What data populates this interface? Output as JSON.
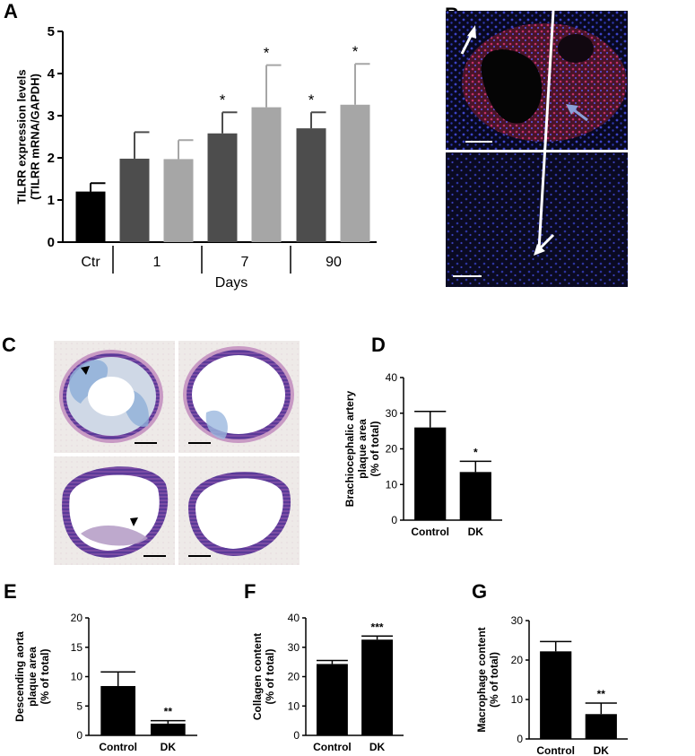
{
  "panels": {
    "A": {
      "letter": "A"
    },
    "B": {
      "letter": "B"
    },
    "C": {
      "letter": "C"
    },
    "D": {
      "letter": "D"
    },
    "E": {
      "letter": "E"
    },
    "F": {
      "letter": "F"
    },
    "G": {
      "letter": "G"
    }
  },
  "colors": {
    "black": "#000000",
    "dark_gray": "#4d4d4d",
    "light_gray": "#a6a6a6",
    "stain_blue": "#4f6fc0",
    "stain_red": "#d0306a",
    "tissue_pink": "#d49ac8"
  },
  "chart_data": [
    {
      "id": "A",
      "type": "bar",
      "ylabel": "TILRR expression levels\n(TILRR mRNA/GAPDH)",
      "xlabel": "Days",
      "group_labels": [
        "Ctr",
        "1",
        "7",
        "90"
      ],
      "ylim": [
        0,
        5
      ],
      "yticks": [
        0,
        1,
        2,
        3,
        4,
        5
      ],
      "bars": [
        {
          "group": "Ctr",
          "value": 1.2,
          "error": 0.2,
          "color": "black",
          "sig": ""
        },
        {
          "group": "1",
          "value": 1.98,
          "error": 0.63,
          "color": "dark_gray",
          "sig": ""
        },
        {
          "group": "1",
          "value": 1.97,
          "error": 0.45,
          "color": "light_gray",
          "sig": ""
        },
        {
          "group": "7",
          "value": 2.58,
          "error": 0.5,
          "color": "dark_gray",
          "sig": "*"
        },
        {
          "group": "7",
          "value": 3.2,
          "error": 1.0,
          "color": "light_gray",
          "sig": "*"
        },
        {
          "group": "90",
          "value": 2.7,
          "error": 0.38,
          "color": "dark_gray",
          "sig": "*"
        },
        {
          "group": "90",
          "value": 3.26,
          "error": 0.97,
          "color": "light_gray",
          "sig": "*"
        }
      ]
    },
    {
      "id": "D",
      "type": "bar",
      "ylabel": "Brachiocephalic artery\nplaque area\n(% of total)",
      "categories": [
        "Control",
        "DK"
      ],
      "values": [
        26,
        13.5
      ],
      "errors": [
        4.5,
        3
      ],
      "sig": [
        "",
        "*"
      ],
      "ylim": [
        0,
        40
      ],
      "yticks": [
        0,
        10,
        20,
        30,
        40
      ]
    },
    {
      "id": "E",
      "type": "bar",
      "ylabel": "Descending aorta\nplaque area\n(% of total)",
      "categories": [
        "Control",
        "DK"
      ],
      "values": [
        8.4,
        2
      ],
      "errors": [
        2.4,
        0.5
      ],
      "sig": [
        "",
        "**"
      ],
      "ylim": [
        0,
        20
      ],
      "yticks": [
        0,
        5,
        10,
        15,
        20
      ]
    },
    {
      "id": "F",
      "type": "bar",
      "ylabel": "Collagen content\n(% of total)",
      "categories": [
        "Control",
        "DK"
      ],
      "values": [
        24.3,
        32.6
      ],
      "errors": [
        1.2,
        1.2
      ],
      "sig": [
        "",
        "***"
      ],
      "ylim": [
        0,
        40
      ],
      "yticks": [
        0,
        10,
        20,
        30,
        40
      ]
    },
    {
      "id": "G",
      "type": "bar",
      "ylabel": "Macrophage content\n(% of total)",
      "categories": [
        "Control",
        "DK"
      ],
      "values": [
        22.2,
        6.3
      ],
      "errors": [
        2.5,
        2.8
      ],
      "sig": [
        "",
        "**"
      ],
      "ylim": [
        0,
        30
      ],
      "yticks": [
        0,
        10,
        20,
        30
      ]
    }
  ]
}
